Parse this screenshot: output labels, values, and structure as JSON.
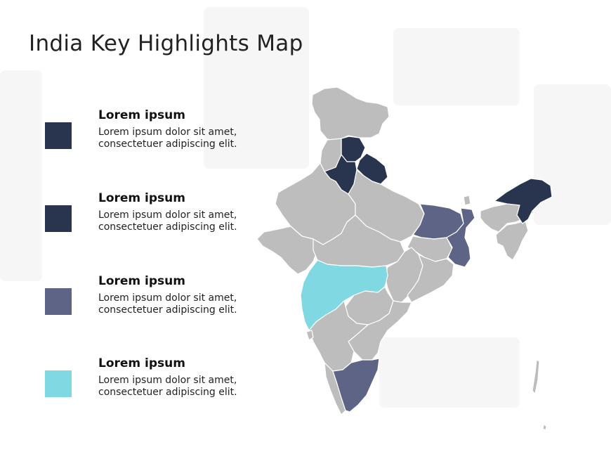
{
  "title": "India Key Highlights Map",
  "colors": {
    "dark_navy": "#29354f",
    "slate": "#5d6485",
    "cyan": "#7fd8e2",
    "base_gray": "#bdbdbd",
    "border": "#ffffff"
  },
  "legend": [
    {
      "heading": "Lorem ipsum",
      "body": "Lorem ipsum dolor sit amet, consectetuer adipiscing elit.",
      "color": "#29354f"
    },
    {
      "heading": "Lorem ipsum",
      "body": "Lorem ipsum dolor sit amet, consectetuer adipiscing elit.",
      "color": "#29354f"
    },
    {
      "heading": "Lorem ipsum",
      "body": "Lorem ipsum dolor sit amet, consectetuer adipiscing elit.",
      "color": "#5d6485"
    },
    {
      "heading": "Lorem ipsum",
      "body": "Lorem ipsum dolor sit amet, consectetuer adipiscing elit.",
      "color": "#7fd8e2"
    }
  ],
  "map": {
    "highlighted_regions": [
      {
        "region": "Himachal Pradesh",
        "color": "#29354f"
      },
      {
        "region": "Uttarakhand",
        "color": "#29354f"
      },
      {
        "region": "Haryana",
        "color": "#29354f"
      },
      {
        "region": "Arunachal Pradesh",
        "color": "#29354f"
      },
      {
        "region": "Bihar",
        "color": "#5d6485"
      },
      {
        "region": "West Bengal",
        "color": "#5d6485"
      },
      {
        "region": "Tamil Nadu",
        "color": "#5d6485"
      },
      {
        "region": "Maharashtra",
        "color": "#7fd8e2"
      }
    ]
  }
}
